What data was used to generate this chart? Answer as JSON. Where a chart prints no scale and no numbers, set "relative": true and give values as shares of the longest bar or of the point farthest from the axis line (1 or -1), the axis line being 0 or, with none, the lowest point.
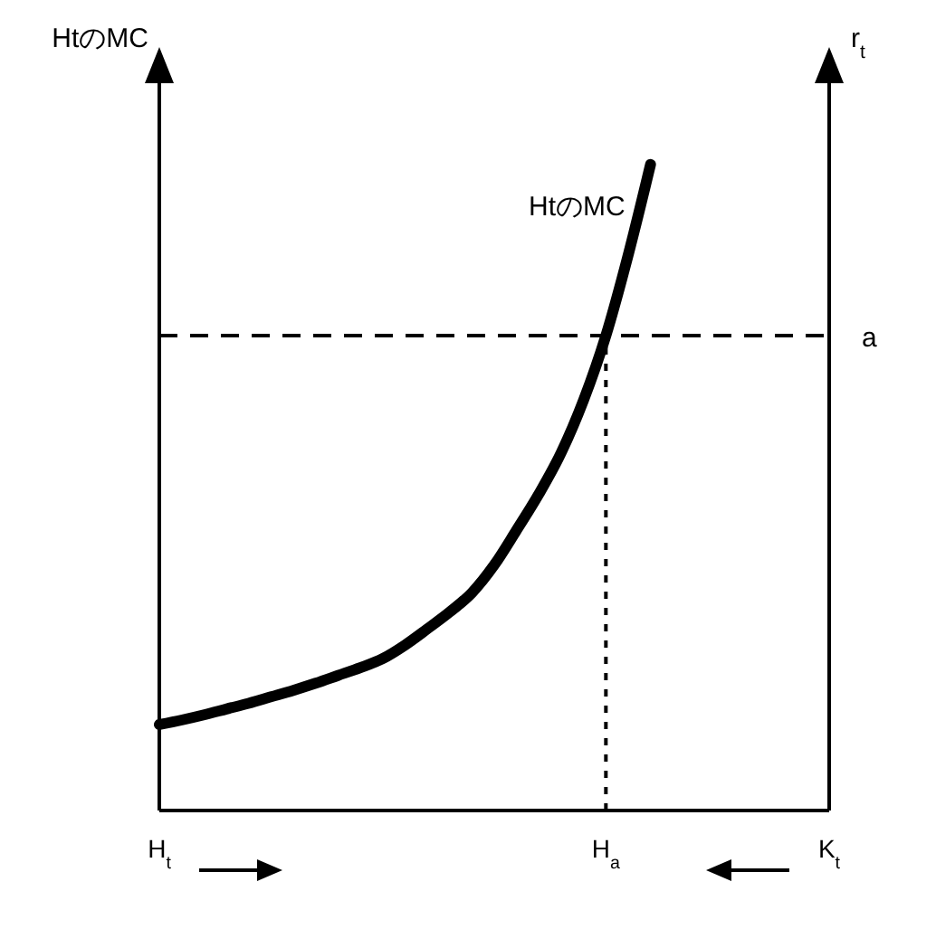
{
  "chart_data": {
    "type": "line",
    "relative": true,
    "ylabel": "HtのMC",
    "y2label": "r$_{t}$",
    "categories": [
      "H$_{t}$",
      null,
      null,
      null,
      null,
      null,
      null,
      null,
      null,
      null,
      null,
      null,
      null,
      null,
      null,
      null,
      null,
      null,
      null,
      null,
      "H$_{a}$",
      null,
      null,
      null,
      null,
      null,
      null,
      null,
      null,
      null,
      "K$_{t}$"
    ],
    "series": [
      {
        "color": "#000000",
        "values": [
          0.133,
          0.14,
          0.148,
          0.157,
          0.166,
          0.176,
          0.186,
          0.197,
          0.209,
          0.221,
          0.235,
          0.256,
          0.281,
          0.307,
          0.337,
          0.38,
          0.434,
          0.49,
          0.554,
          0.635,
          0.735,
          0.86,
          1,
          null,
          null,
          null,
          null,
          null,
          null,
          null,
          null
        ]
      }
    ],
    "ref_lines": [
      {
        "axis": "y",
        "value": 0.735,
        "label": "a",
        "color": "#000000",
        "line_style": "dashed"
      },
      {
        "axis": "x",
        "value": "H$_{a}$",
        "color": "#000000",
        "line_style": "dotted"
      }
    ],
    "annotations": [
      "HtのMC"
    ],
    "marker": "none",
    "line_style": "solid"
  }
}
